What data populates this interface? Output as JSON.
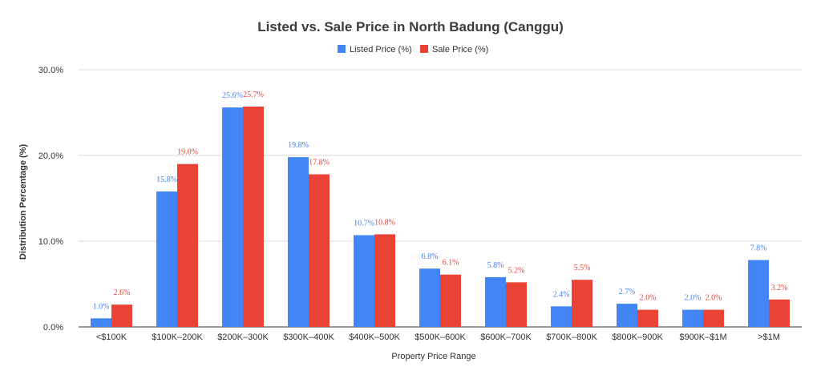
{
  "chart_data": {
    "type": "bar",
    "title": "Listed vs. Sale Price in North Badung (Canggu)",
    "xlabel": "Property Price Range",
    "ylabel": "Distribution Percentage (%)",
    "ylim": [
      0,
      30
    ],
    "yticks": [
      {
        "value": 0,
        "label": "0.0%"
      },
      {
        "value": 10,
        "label": "10.0%"
      },
      {
        "value": 20,
        "label": "20.0%"
      },
      {
        "value": 30,
        "label": "30.0%"
      }
    ],
    "grid": true,
    "legend_position": "top-center",
    "categories": [
      "<$100K",
      "$100K–200K",
      "$200K–300K",
      "$300K–400K",
      "$400K–500K",
      "$500K–600K",
      "$600K–700K",
      "$700K–800K",
      "$800K–900K",
      "$900K–$1M",
      ">$1M"
    ],
    "series": [
      {
        "name": "Listed Price (%)",
        "color": "#4285f4",
        "values": [
          1.0,
          15.8,
          25.6,
          19.8,
          10.7,
          6.8,
          5.8,
          2.4,
          2.7,
          2.0,
          7.8
        ],
        "labels": [
          "1.0%",
          "15.8%",
          "25.6%",
          "19.8%",
          "10.7%",
          "6.8%",
          "5.8%",
          "2.4%",
          "2.7%",
          "2.0%",
          "7.8%"
        ]
      },
      {
        "name": "Sale Price (%)",
        "color": "#ea4335",
        "values": [
          2.6,
          19.0,
          25.7,
          17.8,
          10.8,
          6.1,
          5.2,
          5.5,
          2.0,
          2.0,
          3.2
        ],
        "labels": [
          "2.6%",
          "19.0%",
          "25.7%",
          "17.8%",
          "10.8%",
          "6.1%",
          "5.2%",
          "5.5%",
          "2.0%",
          "2.0%",
          "3.2%"
        ]
      }
    ]
  }
}
